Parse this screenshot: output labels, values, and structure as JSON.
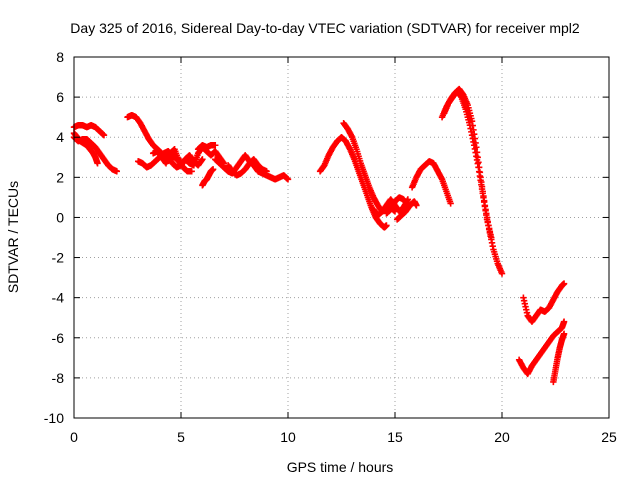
{
  "chart_data": {
    "type": "scatter",
    "title": "Day 325 of 2016, Sidereal Day-to-day VTEC variation (SDTVAR) for receiver mpl2",
    "xlabel": "GPS time / hours",
    "ylabel": "SDTVAR / TECUs",
    "xlim": [
      0,
      25
    ],
    "ylim": [
      -10,
      8
    ],
    "x_ticks": [
      0,
      5,
      10,
      15,
      20,
      25
    ],
    "y_ticks": [
      -10,
      -8,
      -6,
      -4,
      -2,
      0,
      2,
      4,
      6,
      8
    ],
    "x_tick_labels": [
      "0",
      "5",
      "10",
      "15",
      "20",
      "25"
    ],
    "y_tick_labels": [
      "-10",
      "-8",
      "-6",
      "-4",
      "-2",
      "0",
      "2",
      "4",
      "6",
      "8"
    ],
    "grid": true,
    "marker": "+",
    "marker_color": "#ff0000",
    "series": [
      {
        "segments": [
          {
            "x": [
              0,
              0.2,
              0.4,
              0.6,
              0.8,
              1.0,
              1.2,
              1.4
            ],
            "y": [
              4.5,
              4.6,
              4.6,
              4.5,
              4.6,
              4.5,
              4.3,
              4.1
            ]
          },
          {
            "x": [
              0,
              0.15,
              0.3,
              0.45,
              0.6,
              0.75,
              0.9,
              1.0,
              1.1
            ],
            "y": [
              4.2,
              4.0,
              3.8,
              3.7,
              3.6,
              3.4,
              3.2,
              3.0,
              2.7
            ]
          },
          {
            "x": [
              0,
              0.2,
              0.4,
              0.6,
              0.8,
              1.0,
              1.2,
              1.4,
              1.6,
              1.8,
              2.0
            ],
            "y": [
              4.0,
              3.8,
              3.9,
              3.9,
              3.7,
              3.5,
              3.2,
              2.9,
              2.6,
              2.4,
              2.3
            ]
          },
          {
            "x": [
              2.5,
              2.7,
              2.9,
              3.1,
              3.3,
              3.5,
              3.7,
              3.9,
              4.1,
              4.3,
              4.5
            ],
            "y": [
              5.0,
              5.1,
              5.0,
              4.7,
              4.3,
              3.9,
              3.6,
              3.4,
              3.2,
              3.0,
              2.9
            ]
          },
          {
            "x": [
              3.0,
              3.2,
              3.4,
              3.6,
              3.8,
              4.0,
              4.2,
              4.4,
              4.6,
              4.8,
              5.0
            ],
            "y": [
              2.8,
              2.7,
              2.5,
              2.6,
              2.8,
              3.0,
              3.2,
              3.3,
              3.1,
              2.9,
              2.8
            ]
          },
          {
            "x": [
              3.7,
              3.9,
              4.1,
              4.3,
              4.5,
              4.7,
              4.9,
              5.1,
              5.3,
              5.5
            ],
            "y": [
              3.2,
              3.3,
              3.0,
              2.7,
              3.2,
              3.4,
              2.8,
              2.5,
              2.3,
              2.3
            ]
          },
          {
            "x": [
              4.4,
              4.6,
              4.8,
              5.0,
              5.2,
              5.4,
              5.6,
              5.8,
              6.0
            ],
            "y": [
              3.0,
              2.7,
              2.5,
              2.6,
              2.9,
              3.1,
              2.8,
              2.6,
              2.9
            ]
          },
          {
            "x": [
              5.0,
              5.2,
              5.4,
              5.6,
              5.8,
              6.0,
              6.2,
              6.4,
              6.6,
              6.8,
              7.0
            ],
            "y": [
              2.6,
              2.9,
              2.7,
              2.6,
              3.2,
              3.5,
              3.3,
              3.1,
              3.3,
              3.0,
              2.7
            ]
          },
          {
            "x": [
              5.8,
              6.0,
              6.2,
              6.4,
              6.6
            ],
            "y": [
              3.4,
              3.6,
              3.5,
              3.6,
              3.6
            ]
          },
          {
            "x": [
              6.0,
              6.1,
              6.2,
              6.3,
              6.4,
              6.5
            ],
            "y": [
              1.6,
              1.8,
              1.9,
              2.1,
              2.3,
              2.4
            ]
          },
          {
            "x": [
              6.6,
              6.8,
              7.0,
              7.2,
              7.4,
              7.6,
              7.8,
              8.0,
              8.2,
              8.4,
              8.6,
              8.8,
              9.0,
              9.2,
              9.4,
              9.6,
              9.8,
              10.0
            ],
            "y": [
              2.9,
              2.7,
              2.5,
              2.3,
              2.2,
              2.5,
              2.8,
              3.1,
              2.8,
              2.6,
              2.3,
              2.2,
              2.1,
              2.0,
              1.9,
              2.0,
              2.1,
              1.9
            ]
          },
          {
            "x": [
              7.2,
              7.4,
              7.6,
              7.8,
              8.0,
              8.2,
              8.4,
              8.6,
              8.8,
              9.0
            ],
            "y": [
              2.6,
              2.3,
              2.1,
              2.2,
              2.4,
              2.7,
              2.9,
              2.6,
              2.4,
              2.3
            ]
          },
          {
            "x": [
              11.5,
              11.7,
              11.9,
              12.1,
              12.3,
              12.5,
              12.7,
              12.9,
              13.1,
              13.3,
              13.5,
              13.7,
              13.9,
              14.1,
              14.3,
              14.5,
              14.6
            ],
            "y": [
              2.3,
              2.6,
              3.1,
              3.5,
              3.8,
              4.0,
              3.8,
              3.4,
              2.9,
              2.3,
              1.7,
              1.1,
              0.5,
              0.0,
              -0.3,
              -0.5,
              -0.4
            ]
          },
          {
            "x": [
              12.6,
              12.8,
              13.0,
              13.2,
              13.4,
              13.6,
              13.8,
              14.0,
              14.2,
              14.4,
              14.6,
              14.8,
              15.0
            ],
            "y": [
              4.7,
              4.4,
              4.0,
              3.4,
              2.7,
              2.1,
              1.5,
              1.0,
              0.6,
              0.3,
              0.4,
              0.5,
              0.3
            ]
          },
          {
            "x": [
              14.0,
              14.2,
              14.4,
              14.6,
              14.8,
              15.0,
              15.2,
              15.4,
              15.6
            ],
            "y": [
              0.4,
              0.1,
              0.3,
              0.6,
              0.9,
              0.6,
              0.3,
              0.5,
              0.9
            ]
          },
          {
            "x": [
              14.6,
              14.8,
              15.0,
              15.2,
              15.4,
              15.6
            ],
            "y": [
              0.2,
              0.4,
              0.8,
              1.0,
              0.9,
              0.6
            ]
          },
          {
            "x": [
              15.1,
              15.3,
              15.5,
              15.7,
              15.9,
              16.0
            ],
            "y": [
              -0.1,
              0.1,
              0.3,
              0.6,
              0.8,
              0.6
            ]
          },
          {
            "x": [
              15.8,
              16.0,
              16.2,
              16.4,
              16.6,
              16.8,
              17.0,
              17.2,
              17.4,
              17.6
            ],
            "y": [
              1.5,
              2.0,
              2.4,
              2.6,
              2.8,
              2.7,
              2.3,
              1.9,
              1.3,
              0.7
            ]
          },
          {
            "x": [
              17.2,
              17.4,
              17.6,
              17.8,
              18.0,
              18.2,
              18.4,
              18.6,
              18.8,
              19.0,
              19.2,
              19.4,
              19.6,
              19.8,
              20.0
            ],
            "y": [
              5.0,
              5.5,
              5.9,
              6.2,
              6.4,
              6.1,
              5.6,
              4.8,
              3.5,
              2.0,
              0.6,
              -0.6,
              -1.6,
              -2.3,
              -2.8
            ]
          },
          {
            "x": [
              17.3,
              17.5,
              17.7,
              17.9,
              18.1,
              18.3,
              18.5,
              18.7,
              18.9,
              19.1,
              19.3,
              19.5
            ],
            "y": [
              5.2,
              5.7,
              6.0,
              6.3,
              6.0,
              5.4,
              4.6,
              3.6,
              2.5,
              1.2,
              -0.1,
              -1.0
            ]
          },
          {
            "x": [
              21.0,
              21.2,
              21.4,
              21.6,
              21.8,
              22.0,
              22.2,
              22.4,
              22.6,
              22.8,
              22.9
            ],
            "y": [
              -4.0,
              -4.9,
              -5.2,
              -4.9,
              -4.6,
              -4.7,
              -4.5,
              -4.1,
              -3.7,
              -3.4,
              -3.3
            ]
          },
          {
            "x": [
              20.8,
              21.0,
              21.2,
              21.4,
              21.6,
              21.8,
              22.0,
              22.2,
              22.4,
              22.6,
              22.8,
              22.9
            ],
            "y": [
              -7.1,
              -7.5,
              -7.8,
              -7.4,
              -7.1,
              -6.8,
              -6.5,
              -6.2,
              -5.9,
              -5.7,
              -5.5,
              -5.2
            ]
          },
          {
            "x": [
              22.4,
              22.5,
              22.6,
              22.7,
              22.8,
              22.9
            ],
            "y": [
              -8.2,
              -7.6,
              -7.0,
              -6.5,
              -6.1,
              -5.8
            ]
          }
        ]
      }
    ]
  }
}
